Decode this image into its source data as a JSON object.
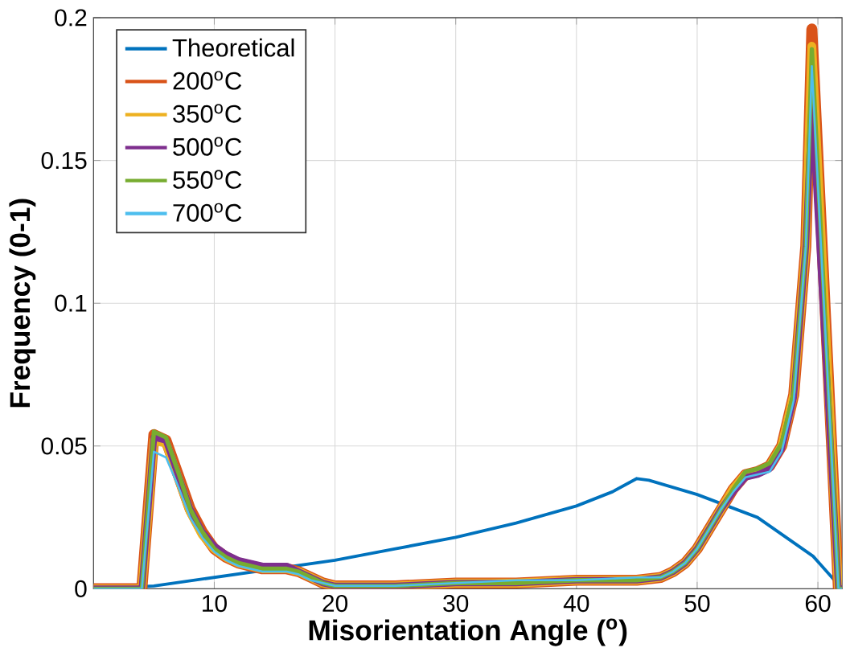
{
  "chart_data": {
    "type": "line",
    "xlabel": "Misorientation Angle ($^{o}$)",
    "ylabel": "Frequency (0-1)",
    "xlim": [
      0,
      62
    ],
    "ylim": [
      0,
      0.2
    ],
    "xticks": [
      10,
      20,
      30,
      40,
      50,
      60
    ],
    "yticks": [
      0,
      0.05,
      0.1,
      0.15,
      0.2
    ],
    "grid": true,
    "legend": "top left",
    "line_style": "solid",
    "marker": "none",
    "x": [
      0,
      4,
      5,
      6,
      7,
      8,
      9,
      10,
      11,
      12,
      13,
      14,
      15,
      16,
      17,
      18,
      19,
      20,
      25,
      30,
      35,
      40,
      45,
      47,
      48,
      49,
      50,
      51,
      52,
      53,
      54,
      55,
      56,
      57,
      58,
      59,
      59.5,
      61.7,
      62
    ],
    "series": [
      {
        "name": "Theoretical",
        "color": "#0072bd",
        "x": [
          0,
          5,
          10,
          15,
          20,
          25,
          30,
          35,
          40,
          43,
          45,
          46,
          50,
          55,
          59.6,
          62
        ],
        "values": [
          0,
          0.001,
          0.004,
          0.007,
          0.01,
          0.014,
          0.018,
          0.023,
          0.029,
          0.034,
          0.0386,
          0.038,
          0.033,
          0.025,
          0.0114,
          0
        ]
      },
      {
        "name": "200$^{o}$C",
        "color": "#d95319",
        "values": [
          0,
          0,
          0.054,
          0.052,
          0.04,
          0.028,
          0.02,
          0.014,
          0.011,
          0.009,
          0.008,
          0.007,
          0.007,
          0.007,
          0.006,
          0.004,
          0.002,
          0.001,
          0.001,
          0.002,
          0.002,
          0.003,
          0.003,
          0.004,
          0.006,
          0.009,
          0.014,
          0.021,
          0.028,
          0.035,
          0.04,
          0.041,
          0.043,
          0.05,
          0.068,
          0.12,
          0.196,
          0,
          0
        ]
      },
      {
        "name": "350$^{o}$C",
        "color": "#edb120",
        "values": [
          0,
          0,
          0.052,
          0.051,
          0.039,
          0.027,
          0.019,
          0.014,
          0.011,
          0.009,
          0.008,
          0.007,
          0.007,
          0.007,
          0.006,
          0.004,
          0.002,
          0.001,
          0.001,
          0.002,
          0.002,
          0.003,
          0.003,
          0.004,
          0.006,
          0.009,
          0.014,
          0.021,
          0.028,
          0.035,
          0.04,
          0.041,
          0.043,
          0.05,
          0.068,
          0.12,
          0.19,
          0,
          0
        ]
      },
      {
        "name": "500$^{o}$C",
        "color": "#7e2f8e",
        "values": [
          0,
          0,
          0.053,
          0.052,
          0.04,
          0.028,
          0.02,
          0.015,
          0.012,
          0.01,
          0.009,
          0.008,
          0.008,
          0.008,
          0.006,
          0.004,
          0.002,
          0.001,
          0.001,
          0.002,
          0.002,
          0.003,
          0.003,
          0.004,
          0.006,
          0.009,
          0.014,
          0.021,
          0.028,
          0.034,
          0.039,
          0.04,
          0.042,
          0.049,
          0.067,
          0.12,
          0.17,
          0,
          0
        ]
      },
      {
        "name": "550$^{o}$C",
        "color": "#77ac30",
        "values": [
          0,
          0,
          0.055,
          0.053,
          0.041,
          0.028,
          0.02,
          0.014,
          0.011,
          0.009,
          0.008,
          0.007,
          0.007,
          0.007,
          0.006,
          0.004,
          0.002,
          0.001,
          0.001,
          0.002,
          0.002,
          0.003,
          0.003,
          0.004,
          0.006,
          0.009,
          0.014,
          0.021,
          0.028,
          0.035,
          0.041,
          0.042,
          0.044,
          0.051,
          0.069,
          0.12,
          0.189,
          0,
          0
        ]
      },
      {
        "name": "700$^{o}$C",
        "color": "#4dbeee",
        "values": [
          0,
          0,
          0.048,
          0.046,
          0.036,
          0.025,
          0.018,
          0.013,
          0.01,
          0.008,
          0.007,
          0.006,
          0.006,
          0.006,
          0.005,
          0.003,
          0.002,
          0.001,
          0.001,
          0.002,
          0.003,
          0.003,
          0.004,
          0.004,
          0.006,
          0.009,
          0.014,
          0.021,
          0.028,
          0.034,
          0.039,
          0.04,
          0.041,
          0.048,
          0.066,
          0.12,
          0.183,
          0,
          0
        ]
      }
    ]
  }
}
